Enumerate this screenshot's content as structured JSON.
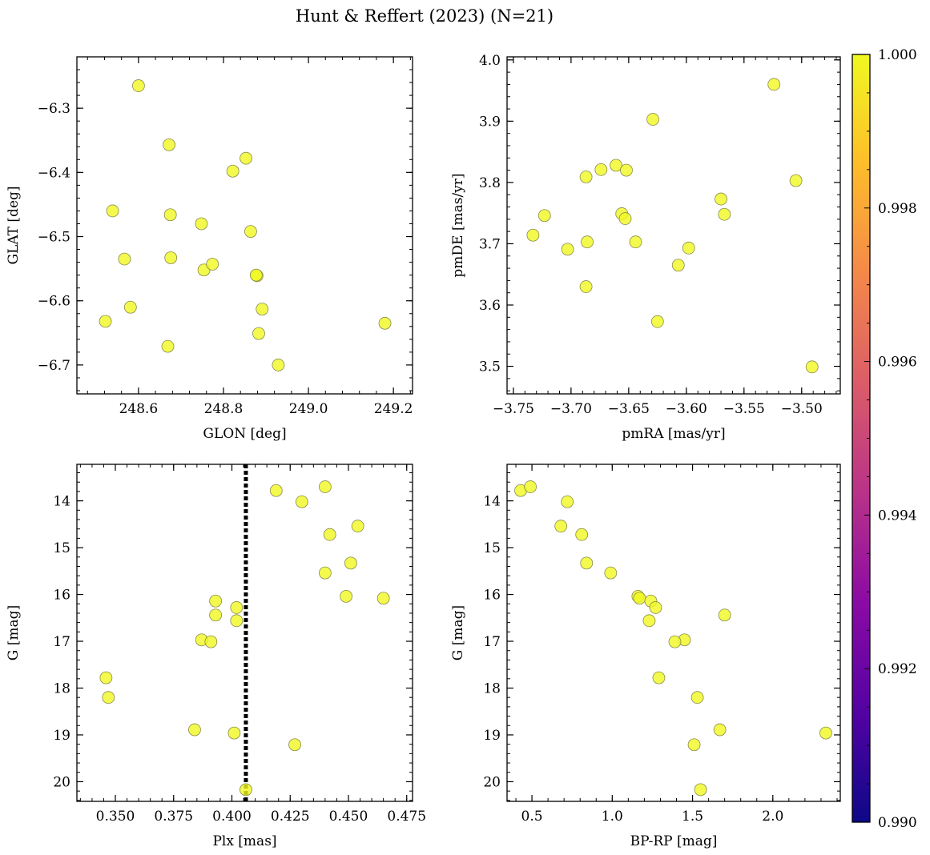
{
  "title": "Hunt & Reffert (2023) (N=21)",
  "colors": {
    "point_fill": "#f0f921",
    "point_edge": "#8a8a4a",
    "axis": "#000000",
    "parallax_line": "#000000"
  },
  "colorbar": {
    "min": 0.99,
    "max": 1.0,
    "ticks": [
      "0.990",
      "0.992",
      "0.994",
      "0.996",
      "0.998",
      "1.000"
    ],
    "colormap_stops": [
      "#0d0887",
      "#5402a3",
      "#8b0aa5",
      "#b93289",
      "#db5c68",
      "#f48849",
      "#febd2a",
      "#f0f921"
    ]
  },
  "chart_data": [
    {
      "id": "glon-glat",
      "type": "scatter",
      "xlabel": "GLON [deg]",
      "ylabel": "GLAT [deg]",
      "xlim": [
        248.455,
        249.245
      ],
      "ylim": [
        -6.745,
        -6.22
      ],
      "y_inverted": false,
      "xticks": [
        "248.6",
        "248.8",
        "249.0",
        "249.2"
      ],
      "yticks": [
        "-6.3",
        "-6.4",
        "-6.5",
        "-6.6",
        "-6.7"
      ],
      "x": [
        248.6,
        248.672,
        248.539,
        248.675,
        248.748,
        248.822,
        248.853,
        248.864,
        248.567,
        248.676,
        248.754,
        248.774,
        248.879,
        248.581,
        248.891,
        248.522,
        248.669,
        248.883,
        248.929,
        249.18,
        248.877
      ],
      "y": [
        -6.265,
        -6.357,
        -6.46,
        -6.466,
        -6.48,
        -6.398,
        -6.378,
        -6.492,
        -6.535,
        -6.533,
        -6.552,
        -6.543,
        -6.561,
        -6.61,
        -6.613,
        -6.632,
        -6.671,
        -6.651,
        -6.7,
        -6.635,
        -6.56
      ]
    },
    {
      "id": "pmra-pmde",
      "type": "scatter",
      "xlabel": "pmRA [mas/yr]",
      "ylabel": "pmDE [mas/yr]",
      "xlim": [
        -3.7555,
        -3.4665
      ],
      "ylim": [
        3.455,
        4.005
      ],
      "y_inverted": false,
      "xticks": [
        "-3.75",
        "-3.70",
        "-3.65",
        "-3.60",
        "-3.55",
        "-3.50"
      ],
      "yticks": [
        "3.5",
        "3.6",
        "3.7",
        "3.8",
        "3.9",
        "4.0"
      ],
      "x": [
        -3.524,
        -3.629,
        -3.661,
        -3.674,
        -3.687,
        -3.652,
        -3.505,
        -3.57,
        -3.567,
        -3.656,
        -3.653,
        -3.723,
        -3.733,
        -3.686,
        -3.703,
        -3.644,
        -3.598,
        -3.607,
        -3.687,
        -3.625,
        -3.491
      ],
      "y": [
        3.96,
        3.903,
        3.828,
        3.821,
        3.809,
        3.82,
        3.803,
        3.773,
        3.748,
        3.749,
        3.741,
        3.746,
        3.714,
        3.703,
        3.691,
        3.703,
        3.693,
        3.665,
        3.63,
        3.573,
        3.499
      ]
    },
    {
      "id": "plx-g",
      "type": "scatter",
      "xlabel": "Plx [mas]",
      "ylabel": "G [mag]",
      "xlim": [
        0.3335,
        0.4775
      ],
      "ylim": [
        20.42,
        13.22
      ],
      "y_inverted": true,
      "xticks": [
        "0.350",
        "0.375",
        "0.400",
        "0.425",
        "0.450",
        "0.475"
      ],
      "yticks": [
        "14",
        "15",
        "16",
        "17",
        "18",
        "19",
        "20"
      ],
      "vline": 0.406,
      "x": [
        0.419,
        0.44,
        0.43,
        0.454,
        0.442,
        0.451,
        0.44,
        0.449,
        0.465,
        0.393,
        0.402,
        0.393,
        0.402,
        0.387,
        0.391,
        0.346,
        0.347,
        0.384,
        0.401,
        0.427,
        0.406
      ],
      "y": [
        13.78,
        13.7,
        14.02,
        14.54,
        14.72,
        15.33,
        15.54,
        16.04,
        16.08,
        16.14,
        16.28,
        16.44,
        16.56,
        16.97,
        17.01,
        17.78,
        18.2,
        18.89,
        18.96,
        19.21,
        20.17
      ]
    },
    {
      "id": "bprp-g",
      "type": "scatter",
      "xlabel": "BP-RP [mag]",
      "ylabel": "G [mag]",
      "xlim": [
        0.345,
        2.42
      ],
      "ylim": [
        20.42,
        13.22
      ],
      "y_inverted": true,
      "xticks": [
        "0.5",
        "1.0",
        "1.5",
        "2.0"
      ],
      "yticks": [
        "14",
        "15",
        "16",
        "17",
        "18",
        "19",
        "20"
      ],
      "x": [
        0.43,
        0.49,
        0.72,
        0.68,
        0.81,
        0.84,
        0.99,
        1.16,
        1.17,
        1.24,
        1.27,
        1.7,
        1.23,
        1.45,
        1.39,
        1.29,
        1.53,
        1.67,
        2.33,
        1.51,
        1.55
      ],
      "y": [
        13.78,
        13.7,
        14.02,
        14.54,
        14.72,
        15.33,
        15.54,
        16.04,
        16.08,
        16.14,
        16.28,
        16.44,
        16.56,
        16.97,
        17.01,
        17.78,
        18.2,
        18.89,
        18.96,
        19.21,
        20.17
      ]
    }
  ]
}
